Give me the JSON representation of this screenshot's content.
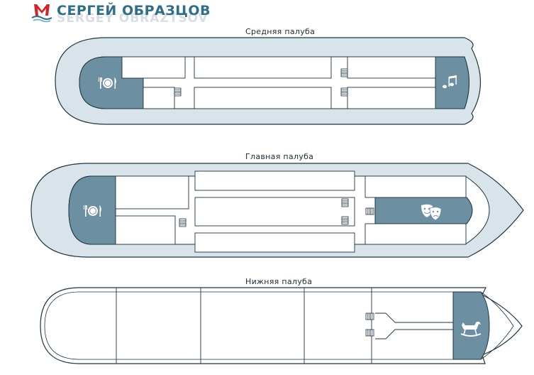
{
  "logo": {
    "name_ru": "СЕРГЕЙ ОБРАЗЦОВ",
    "name_en": "SERGEY OBRAZTSOV"
  },
  "decks": {
    "middle": {
      "title": "Средняя палуба",
      "icons": [
        "restaurant-icon",
        "music-note-icon"
      ]
    },
    "main": {
      "title": "Главная палуба",
      "icons": [
        "restaurant-icon",
        "theatre-masks-icon"
      ]
    },
    "lower": {
      "title": "Нижняя палуба",
      "icons": [
        "rocking-horse-icon"
      ]
    }
  },
  "colors": {
    "hull_fill": "#d8e3ea",
    "outline": "#1f3540",
    "highlight": "#6d8fa2",
    "room": "#ffffff",
    "brand": "#2f6e88"
  }
}
